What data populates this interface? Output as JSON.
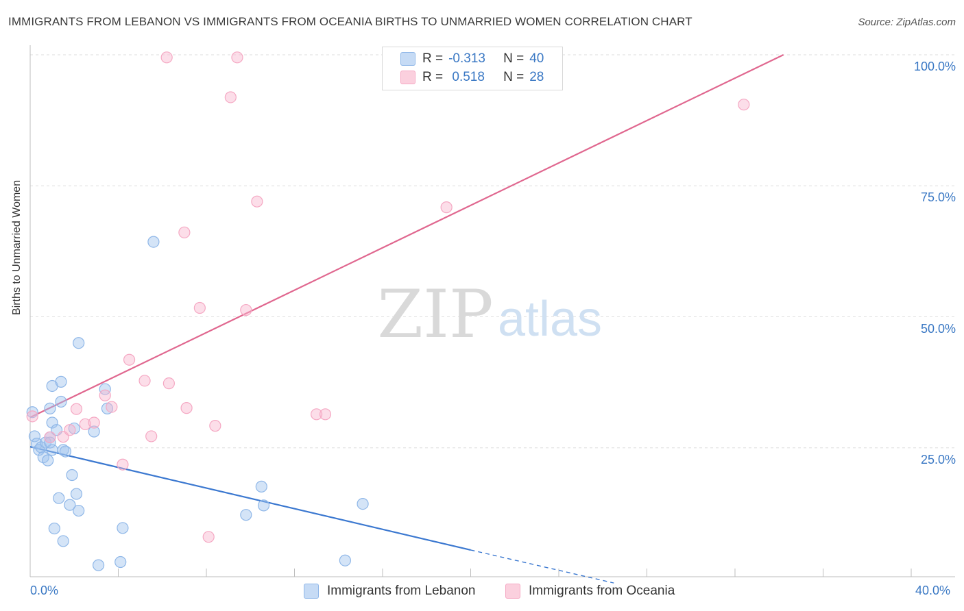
{
  "title": "IMMIGRANTS FROM LEBANON VS IMMIGRANTS FROM OCEANIA BIRTHS TO UNMARRIED WOMEN CORRELATION CHART",
  "source": "Source: ZipAtlas.com",
  "watermark": {
    "zip": "ZIP",
    "atlas": "atlas"
  },
  "legend": {
    "rows": [
      {
        "r_label": "R =",
        "r_value": "-0.313",
        "n_label": "N =",
        "n_value": "40"
      },
      {
        "r_label": "R =",
        "r_value": " 0.518",
        "n_label": "N =",
        "n_value": "28"
      }
    ]
  },
  "chart_data": {
    "type": "scatter",
    "title": "IMMIGRANTS FROM LEBANON VS IMMIGRANTS FROM OCEANIA BIRTHS TO UNMARRIED WOMEN CORRELATION CHART",
    "xlabel": "",
    "ylabel": "Births to Unmarried Women",
    "xlim": [
      0,
      40
    ],
    "ylim": [
      0,
      100
    ],
    "x_tick_labels": [
      "0.0%",
      "40.0%"
    ],
    "y_tick_labels": [
      "25.0%",
      "50.0%",
      "75.0%",
      "100.0%"
    ],
    "y_ticks": [
      25,
      50,
      75,
      100
    ],
    "grid": true,
    "series": [
      {
        "name": "Immigrants from Lebanon",
        "color": "#8fb7e8",
        "line_color": "#3b78d0",
        "trend": {
          "x": [
            0,
            20
          ],
          "y": [
            25.2,
            5.5
          ],
          "dashed_to": [
            26.5,
            -0.8
          ]
        },
        "points": [
          [
            0.1,
            31.8
          ],
          [
            0.2,
            27.2
          ],
          [
            0.3,
            25.8
          ],
          [
            0.4,
            24.6
          ],
          [
            0.5,
            25.1
          ],
          [
            0.6,
            23.2
          ],
          [
            0.7,
            26.0
          ],
          [
            0.8,
            22.6
          ],
          [
            0.9,
            27.0
          ],
          [
            0.9,
            32.5
          ],
          [
            1.0,
            29.8
          ],
          [
            1.0,
            24.6
          ],
          [
            0.9,
            26.0
          ],
          [
            1.0,
            36.8
          ],
          [
            1.2,
            28.4
          ],
          [
            1.4,
            37.6
          ],
          [
            1.4,
            33.8
          ],
          [
            1.5,
            24.6
          ],
          [
            1.6,
            24.3
          ],
          [
            1.9,
            19.8
          ],
          [
            2.0,
            28.7
          ],
          [
            2.1,
            16.2
          ],
          [
            2.2,
            45.0
          ],
          [
            2.2,
            13.0
          ],
          [
            1.8,
            14.1
          ],
          [
            1.3,
            15.4
          ],
          [
            1.1,
            9.6
          ],
          [
            1.5,
            7.2
          ],
          [
            2.9,
            28.1
          ],
          [
            3.4,
            36.2
          ],
          [
            3.5,
            32.5
          ],
          [
            4.2,
            9.7
          ],
          [
            4.1,
            3.2
          ],
          [
            3.1,
            2.6
          ],
          [
            5.6,
            64.3
          ],
          [
            9.8,
            12.2
          ],
          [
            10.5,
            17.6
          ],
          [
            10.6,
            14.0
          ],
          [
            15.1,
            14.3
          ],
          [
            14.3,
            3.5
          ]
        ]
      },
      {
        "name": "Immigrants from Oceania",
        "color": "#f5a8c3",
        "line_color": "#e0678f",
        "trend": {
          "x": [
            0,
            34.2
          ],
          "y": [
            30.8,
            100
          ]
        },
        "points": [
          [
            0.1,
            31.0
          ],
          [
            1.5,
            27.1
          ],
          [
            1.8,
            28.4
          ],
          [
            2.1,
            32.4
          ],
          [
            2.5,
            29.5
          ],
          [
            2.9,
            29.8
          ],
          [
            3.4,
            35.0
          ],
          [
            3.7,
            32.8
          ],
          [
            4.2,
            21.8
          ],
          [
            4.5,
            41.8
          ],
          [
            5.2,
            37.8
          ],
          [
            5.5,
            27.2
          ],
          [
            6.3,
            37.3
          ],
          [
            6.2,
            99.5
          ],
          [
            7.0,
            66.1
          ],
          [
            7.1,
            32.6
          ],
          [
            7.7,
            51.7
          ],
          [
            8.4,
            29.2
          ],
          [
            8.1,
            8.0
          ],
          [
            9.1,
            91.9
          ],
          [
            9.4,
            99.5
          ],
          [
            9.8,
            51.3
          ],
          [
            10.3,
            72.0
          ],
          [
            13.0,
            31.4
          ],
          [
            13.4,
            31.4
          ],
          [
            18.9,
            70.9
          ],
          [
            32.4,
            90.5
          ],
          [
            0.9,
            27.0
          ]
        ]
      }
    ]
  }
}
